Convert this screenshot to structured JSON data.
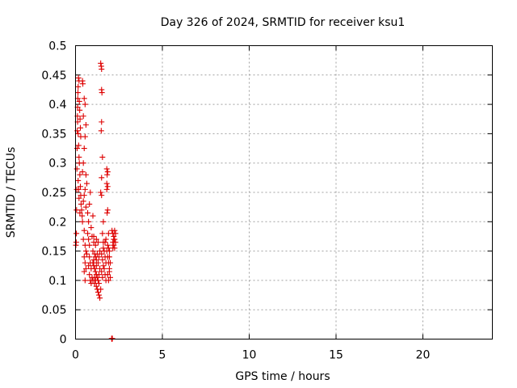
{
  "chart_data": {
    "type": "scatter",
    "title": "Day 326 of 2024, SRMTID for receiver ksu1",
    "xlabel": "GPS time / hours",
    "ylabel": "SRMTID / TECUs",
    "xlim": [
      0,
      24
    ],
    "ylim": [
      0,
      0.5
    ],
    "x_ticks": [
      0,
      5,
      10,
      15,
      20
    ],
    "x_tick_labels": [
      "0",
      "5",
      "10",
      "15",
      "20"
    ],
    "y_ticks": [
      0,
      0.05,
      0.1,
      0.15,
      0.2,
      0.25,
      0.3,
      0.35,
      0.4,
      0.45,
      0.5
    ],
    "y_tick_labels": [
      "0",
      "0.05",
      "0.1",
      "0.15",
      "0.2",
      "0.25",
      "0.3",
      "0.35",
      "0.4",
      "0.45",
      "0.5"
    ],
    "grid": true,
    "marker": "+",
    "color": "#dd0000",
    "series": [
      {
        "name": "ksu1",
        "points": [
          [
            0.02,
            0.16
          ],
          [
            0.04,
            0.165
          ],
          [
            0.05,
            0.18
          ],
          [
            0.06,
            0.22
          ],
          [
            0.07,
            0.255
          ],
          [
            0.08,
            0.29
          ],
          [
            0.09,
            0.325
          ],
          [
            0.1,
            0.355
          ],
          [
            0.11,
            0.38
          ],
          [
            0.12,
            0.395
          ],
          [
            0.13,
            0.41
          ],
          [
            0.14,
            0.42
          ],
          [
            0.15,
            0.43
          ],
          [
            0.17,
            0.445
          ],
          [
            0.2,
            0.44
          ],
          [
            0.22,
            0.405
          ],
          [
            0.24,
            0.39
          ],
          [
            0.26,
            0.375
          ],
          [
            0.28,
            0.36
          ],
          [
            0.3,
            0.345
          ],
          [
            0.12,
            0.37
          ],
          [
            0.15,
            0.35
          ],
          [
            0.18,
            0.33
          ],
          [
            0.2,
            0.31
          ],
          [
            0.22,
            0.3
          ],
          [
            0.25,
            0.28
          ],
          [
            0.28,
            0.26
          ],
          [
            0.3,
            0.245
          ],
          [
            0.32,
            0.23
          ],
          [
            0.35,
            0.22
          ],
          [
            0.38,
            0.21
          ],
          [
            0.4,
            0.2
          ],
          [
            0.15,
            0.27
          ],
          [
            0.18,
            0.255
          ],
          [
            0.2,
            0.24
          ],
          [
            0.25,
            0.215
          ],
          [
            0.4,
            0.44
          ],
          [
            0.42,
            0.435
          ],
          [
            0.45,
            0.38
          ],
          [
            0.5,
            0.41
          ],
          [
            0.55,
            0.4
          ],
          [
            0.6,
            0.365
          ],
          [
            0.55,
            0.345
          ],
          [
            0.5,
            0.325
          ],
          [
            0.45,
            0.3
          ],
          [
            0.4,
            0.285
          ],
          [
            0.6,
            0.28
          ],
          [
            0.65,
            0.265
          ],
          [
            0.55,
            0.255
          ],
          [
            0.5,
            0.245
          ],
          [
            0.45,
            0.235
          ],
          [
            0.6,
            0.225
          ],
          [
            0.7,
            0.215
          ],
          [
            0.5,
            0.185
          ],
          [
            0.45,
            0.17
          ],
          [
            0.55,
            0.16
          ],
          [
            0.6,
            0.15
          ],
          [
            0.65,
            0.145
          ],
          [
            0.5,
            0.14
          ],
          [
            0.55,
            0.13
          ],
          [
            0.6,
            0.12
          ],
          [
            0.5,
            0.115
          ],
          [
            0.55,
            0.1
          ],
          [
            0.7,
            0.18
          ],
          [
            0.75,
            0.17
          ],
          [
            0.8,
            0.16
          ],
          [
            0.85,
            0.25
          ],
          [
            0.8,
            0.23
          ],
          [
            0.75,
            0.2
          ],
          [
            0.9,
            0.19
          ],
          [
            0.95,
            0.175
          ],
          [
            0.8,
            0.14
          ],
          [
            0.85,
            0.13
          ],
          [
            0.9,
            0.12
          ],
          [
            0.75,
            0.125
          ],
          [
            0.8,
            0.11
          ],
          [
            0.85,
            0.1
          ],
          [
            0.9,
            0.095
          ],
          [
            0.95,
            0.105
          ],
          [
            1.0,
            0.21
          ],
          [
            1.05,
            0.165
          ],
          [
            1.0,
            0.15
          ],
          [
            1.1,
            0.145
          ],
          [
            1.15,
            0.14
          ],
          [
            1.2,
            0.135
          ],
          [
            1.0,
            0.13
          ],
          [
            1.05,
            0.125
          ],
          [
            1.1,
            0.12
          ],
          [
            1.15,
            0.115
          ],
          [
            1.2,
            0.11
          ],
          [
            1.25,
            0.105
          ],
          [
            1.0,
            0.1
          ],
          [
            1.1,
            0.095
          ],
          [
            1.2,
            0.09
          ],
          [
            1.25,
            0.085
          ],
          [
            1.3,
            0.08
          ],
          [
            1.35,
            0.075
          ],
          [
            1.4,
            0.07
          ],
          [
            1.3,
            0.1
          ],
          [
            1.35,
            0.11
          ],
          [
            1.4,
            0.12
          ],
          [
            1.3,
            0.13
          ],
          [
            1.35,
            0.14
          ],
          [
            1.4,
            0.15
          ],
          [
            1.3,
            0.165
          ],
          [
            1.2,
            0.17
          ],
          [
            1.15,
            0.16
          ],
          [
            1.05,
            0.175
          ],
          [
            1.1,
            0.105
          ],
          [
            1.2,
            0.125
          ],
          [
            1.25,
            0.145
          ],
          [
            1.35,
            0.095
          ],
          [
            1.45,
            0.085
          ],
          [
            1.05,
            0.135
          ],
          [
            1.15,
            0.1
          ],
          [
            1.45,
            0.47
          ],
          [
            1.48,
            0.465
          ],
          [
            1.5,
            0.46
          ],
          [
            1.5,
            0.425
          ],
          [
            1.52,
            0.42
          ],
          [
            1.5,
            0.37
          ],
          [
            1.48,
            0.355
          ],
          [
            1.55,
            0.31
          ],
          [
            1.5,
            0.275
          ],
          [
            1.45,
            0.25
          ],
          [
            1.5,
            0.245
          ],
          [
            1.6,
            0.2
          ],
          [
            1.55,
            0.18
          ],
          [
            1.6,
            0.155
          ],
          [
            1.5,
            0.145
          ],
          [
            1.55,
            0.135
          ],
          [
            1.6,
            0.125
          ],
          [
            1.5,
            0.115
          ],
          [
            1.55,
            0.105
          ],
          [
            1.6,
            0.165
          ],
          [
            1.65,
            0.15
          ],
          [
            1.7,
            0.14
          ],
          [
            1.75,
            0.13
          ],
          [
            1.65,
            0.12
          ],
          [
            1.7,
            0.11
          ],
          [
            1.75,
            0.1
          ],
          [
            1.8,
            0.15
          ],
          [
            1.7,
            0.165
          ],
          [
            1.75,
            0.17
          ],
          [
            1.8,
            0.29
          ],
          [
            1.85,
            0.285
          ],
          [
            1.82,
            0.28
          ],
          [
            1.8,
            0.265
          ],
          [
            1.85,
            0.26
          ],
          [
            1.8,
            0.255
          ],
          [
            1.85,
            0.22
          ],
          [
            1.82,
            0.215
          ],
          [
            1.9,
            0.18
          ],
          [
            1.85,
            0.16
          ],
          [
            1.9,
            0.155
          ],
          [
            1.95,
            0.15
          ],
          [
            1.85,
            0.14
          ],
          [
            1.9,
            0.13
          ],
          [
            1.95,
            0.12
          ],
          [
            1.85,
            0.11
          ],
          [
            1.9,
            0.1
          ],
          [
            1.95,
            0.14
          ],
          [
            2.0,
            0.13
          ],
          [
            1.95,
            0.115
          ],
          [
            2.0,
            0.105
          ],
          [
            2.1,
            0.185
          ],
          [
            2.15,
            0.18
          ],
          [
            2.2,
            0.175
          ],
          [
            2.25,
            0.17
          ],
          [
            2.15,
            0.165
          ],
          [
            2.2,
            0.16
          ],
          [
            2.25,
            0.155
          ],
          [
            2.3,
            0.165
          ],
          [
            2.3,
            0.18
          ],
          [
            2.2,
            0.17
          ],
          [
            2.15,
            0.155
          ],
          [
            2.25,
            0.185
          ],
          [
            2.08,
            0.001
          ],
          [
            2.12,
            0.001
          ],
          [
            2.1,
            0.0
          ]
        ]
      }
    ]
  }
}
